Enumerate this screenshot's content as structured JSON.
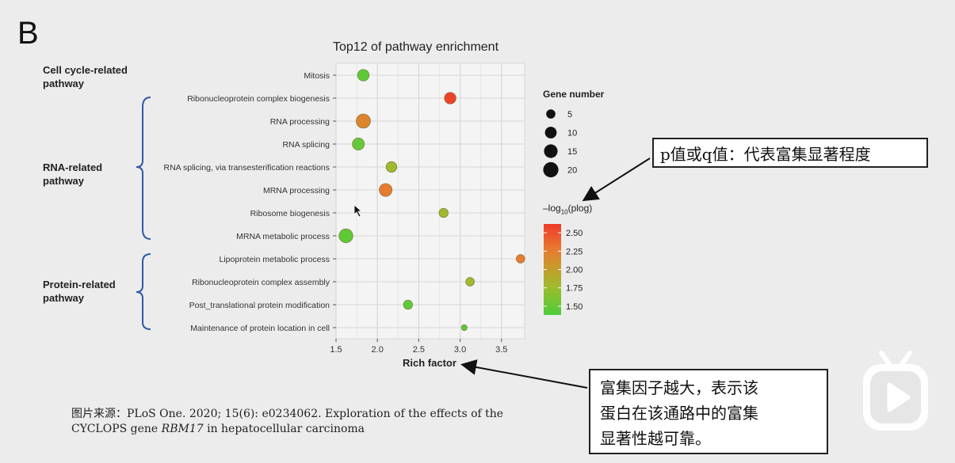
{
  "panel_letter": "B",
  "group_labels": [
    {
      "text": "Cell cycle-related pathway"
    },
    {
      "text": "RNA-related pathway"
    },
    {
      "text": "Protein-related pathway"
    }
  ],
  "size_legend": {
    "title": "Gene number",
    "entries": [
      5,
      10,
      15,
      20
    ]
  },
  "color_legend": {
    "title": "-log10(plog)",
    "ticks": [
      2.5,
      2.25,
      2.0,
      1.75,
      1.5
    ],
    "tick_labels": [
      "2.50",
      "2.25",
      "2.00",
      "1.75",
      "1.50"
    ],
    "range": [
      1.38,
      2.62
    ],
    "colors": [
      "#4ccd3a",
      "#9cbc2d",
      "#c79a2c",
      "#e87a30",
      "#ef3b2a"
    ]
  },
  "callout_pvalue": "p值或q值：代表富集显著程度",
  "callout_rich": [
    "富集因子越大，表示该",
    "蛋白在该通路中的富集",
    "显著性越可靠。"
  ],
  "source": {
    "line1": "图片来源：PLoS One. 2020; 15(6): e0234062. Exploration of the effects of the",
    "line2_prefix": "CYCLOPS gene ",
    "line2_gene": "RBM17",
    "line2_suffix": " in hepatocellular carcinoma"
  },
  "chart_data": {
    "type": "scatter",
    "title": "Top12 of pathway enrichment",
    "xlabel": "Rich factor",
    "ylabel": "",
    "xlim": [
      1.5,
      3.78
    ],
    "xticks": [
      1.5,
      2.0,
      2.5,
      3.0,
      3.5
    ],
    "xtick_labels": [
      "1.5",
      "2.0",
      "2.5",
      "3.0",
      "3.5"
    ],
    "grid": true,
    "categories": [
      "Mitosis",
      "Ribonucleoprotein complex biogenesis",
      "RNA processing",
      "RNA splicing",
      "RNA splicing, via transesterification reactions",
      "MRNA processing",
      "Ribosome biogenesis",
      "MRNA metabolic process",
      "Lipoprotein metabolic process",
      "Ribonucleoprotein complex assembly",
      "Post_translational protein modification",
      "Maintenance of protein location in cell"
    ],
    "points": [
      {
        "category": "Mitosis",
        "rich_factor": 1.83,
        "gene_number": 10,
        "neg_log10_p": 1.45
      },
      {
        "category": "Ribonucleoprotein complex biogenesis",
        "rich_factor": 2.88,
        "gene_number": 10,
        "neg_log10_p": 2.58
      },
      {
        "category": "RNA processing",
        "rich_factor": 1.83,
        "gene_number": 17,
        "neg_log10_p": 2.2
      },
      {
        "category": "RNA splicing",
        "rich_factor": 1.77,
        "gene_number": 11,
        "neg_log10_p": 1.48
      },
      {
        "category": "RNA splicing, via transesterification reactions",
        "rich_factor": 2.17,
        "gene_number": 8,
        "neg_log10_p": 1.7
      },
      {
        "category": "MRNA processing",
        "rich_factor": 2.1,
        "gene_number": 13,
        "neg_log10_p": 2.3
      },
      {
        "category": "Ribosome biogenesis",
        "rich_factor": 2.8,
        "gene_number": 5,
        "neg_log10_p": 1.72
      },
      {
        "category": "MRNA metabolic process",
        "rich_factor": 1.62,
        "gene_number": 16,
        "neg_log10_p": 1.45
      },
      {
        "category": "Lipoprotein metabolic process",
        "rich_factor": 3.73,
        "gene_number": 4,
        "neg_log10_p": 2.3
      },
      {
        "category": "Ribonucleoprotein complex assembly",
        "rich_factor": 3.12,
        "gene_number": 4,
        "neg_log10_p": 1.72
      },
      {
        "category": "Post_translational protein modification",
        "rich_factor": 2.37,
        "gene_number": 5,
        "neg_log10_p": 1.45
      },
      {
        "category": "Maintenance of protein location in cell",
        "rich_factor": 3.05,
        "gene_number": 1,
        "neg_log10_p": 1.42
      }
    ]
  }
}
